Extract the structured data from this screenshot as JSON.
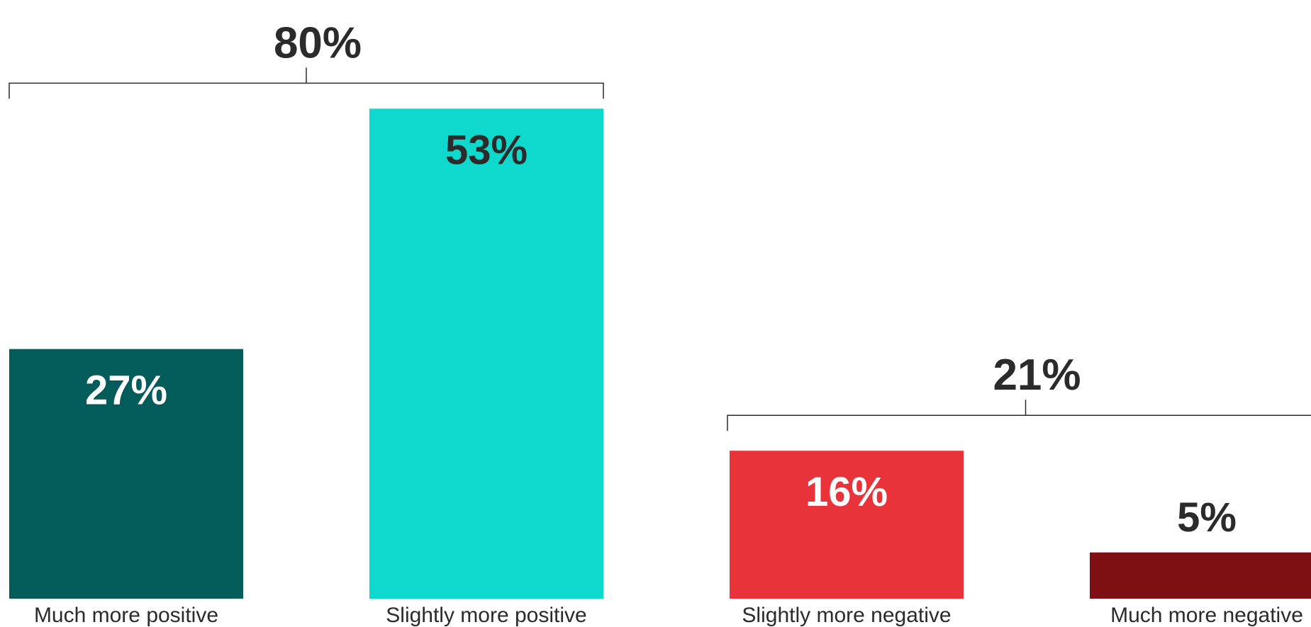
{
  "chart_data": {
    "type": "bar",
    "categories": [
      "Much more positive",
      "Slightly more positive",
      "Slightly more negative",
      "Much more negative"
    ],
    "values": [
      27,
      53,
      16,
      5
    ],
    "value_labels": [
      "27%",
      "53%",
      "16%",
      "5%"
    ],
    "colors": [
      "#045c5a",
      "#0fd8cc",
      "#e8333a",
      "#7e1014"
    ],
    "value_label_colors": [
      "#ffffff",
      "#2b2b2b",
      "#ffffff",
      "#2b2b2b"
    ],
    "ylim": [
      0,
      60
    ],
    "grid": false,
    "groups": [
      {
        "label": "80%",
        "from": 0,
        "to": 1
      },
      {
        "label": "21%",
        "from": 2,
        "to": 3
      }
    ]
  }
}
